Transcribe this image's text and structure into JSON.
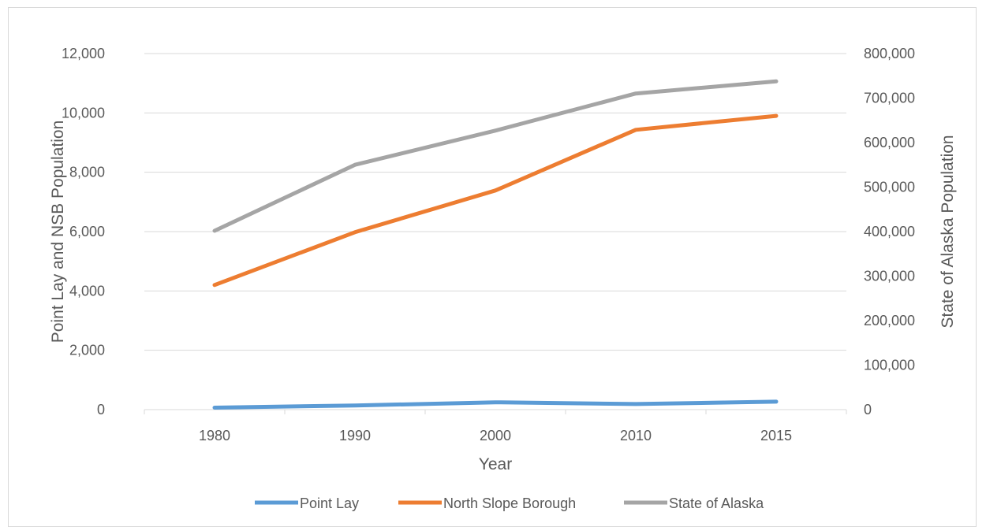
{
  "chart_data": {
    "type": "line",
    "title": "",
    "xlabel": "Year",
    "ylabel": "Point Lay and NSB Population",
    "y2label": "State of Alaska Population",
    "categories": [
      "1980",
      "1990",
      "2000",
      "2010",
      "2015"
    ],
    "ylim": [
      0,
      12000
    ],
    "y2lim": [
      0,
      800000
    ],
    "y_ticks": [
      "0",
      "2,000",
      "4,000",
      "6,000",
      "8,000",
      "10,000",
      "12,000"
    ],
    "y2_ticks": [
      "0",
      "100,000",
      "200,000",
      "300,000",
      "400,000",
      "500,000",
      "600,000",
      "700,000",
      "800,000"
    ],
    "grid": true,
    "legend_position": "bottom",
    "series": [
      {
        "name": "Point Lay",
        "axis": "left",
        "color": "#5b9bd5",
        "values": [
          68,
          139,
          247,
          189,
          270
        ]
      },
      {
        "name": "North Slope Borough",
        "axis": "left",
        "color": "#ed7d31",
        "values": [
          4200,
          5979,
          7385,
          9430,
          9900
        ]
      },
      {
        "name": "State of Alaska",
        "axis": "right",
        "color": "#a5a5a5",
        "values": [
          401851,
          550043,
          626932,
          710231,
          737625
        ]
      }
    ]
  }
}
